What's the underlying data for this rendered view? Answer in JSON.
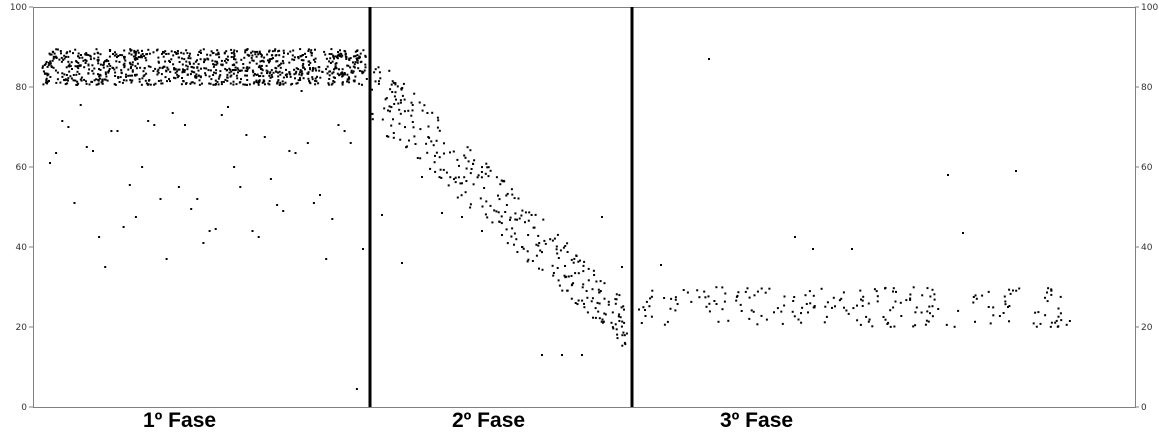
{
  "chart_data": {
    "type": "scatter",
    "title": "",
    "xlabel": "",
    "ylabel": "",
    "ylim": [
      0,
      100
    ],
    "grid": false,
    "y_ticks": [
      0,
      20,
      40,
      60,
      80,
      100
    ],
    "y_tick_labels": [
      "0",
      "20",
      "40",
      "60",
      "80",
      "100"
    ],
    "y_axis_sides": [
      "left",
      "right"
    ],
    "point_color": "#000000",
    "phase_divider_color": "#000000",
    "phases": [
      {
        "label": "1º Fase",
        "description_of_points": "dense band of points between ~80 and ~90, with scattered outliers below",
        "band": [
          80.5,
          89.5
        ],
        "band_count": 950,
        "outliers": [
          61,
          63.5,
          71.5,
          70,
          51,
          75.5,
          65,
          64,
          42.5,
          35,
          69,
          69,
          45,
          55.5,
          47.5,
          60,
          71.5,
          70.5,
          52,
          37,
          73.5,
          55,
          70.5,
          49.5,
          52,
          41,
          44,
          44.5,
          73,
          75,
          60,
          55,
          68,
          44,
          42.5,
          67.5,
          57,
          50.5,
          49,
          64,
          63.5,
          79,
          66,
          51,
          53,
          37,
          47,
          70.5,
          69,
          66,
          4.5,
          39.5
        ]
      },
      {
        "label": "2º Fase",
        "description_of_points": "points declining from ~80 to ~15, with scattered outliers",
        "start_value": 80,
        "end_value": 20,
        "count": 330,
        "outliers": [
          48,
          36,
          57.5,
          48.5,
          47.5,
          44,
          43,
          40,
          13,
          13,
          13,
          47.5,
          35
        ]
      },
      {
        "label": "3º Fase",
        "description_of_points": "points fluctuating between ~20 and ~30, with a few outliers",
        "band": [
          20,
          30
        ],
        "count": 210,
        "outliers": [
          87,
          35.5,
          42.5,
          39.5,
          39.5,
          58,
          43.5,
          59
        ]
      }
    ]
  }
}
